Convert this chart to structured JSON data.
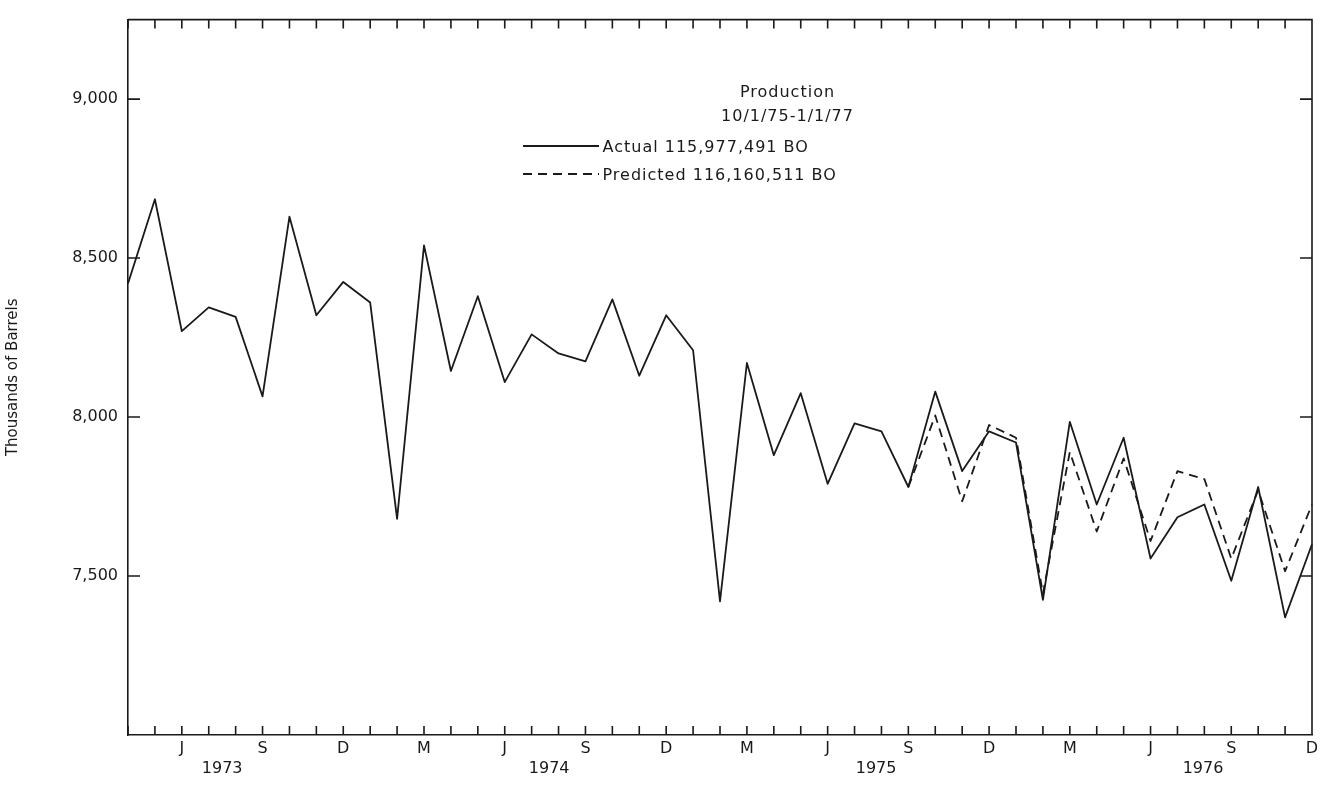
{
  "chart_data": {
    "type": "line",
    "ylabel": "Thousands of Barrels",
    "legend_title": "Production 10/1/75-1/1/77",
    "legend": "top",
    "marker": "none",
    "categories": [
      null,
      null,
      "J",
      null,
      null,
      "S",
      null,
      null,
      "D",
      null,
      null,
      "M",
      null,
      null,
      "J",
      null,
      null,
      "S",
      null,
      null,
      "D",
      null,
      null,
      "M",
      null,
      null,
      "J",
      null,
      null,
      "S",
      null,
      null,
      "D",
      null,
      null,
      "M",
      null,
      null,
      "J",
      null,
      null,
      "S",
      null,
      null,
      "D"
    ],
    "annotations": [
      "1973",
      "1974",
      "1975",
      "1976"
    ],
    "series": [
      {
        "name": "Actual 115,977,491 BO",
        "color": "#1a1a1a",
        "line_style": "solid",
        "values": [
          8420,
          8685,
          8270,
          8345,
          8315,
          8065,
          8630,
          8320,
          8425,
          8360,
          7680,
          8540,
          8145,
          8380,
          8110,
          8260,
          8200,
          8175,
          8370,
          8130,
          8320,
          8210,
          7420,
          8170,
          7880,
          8075,
          7790,
          7980,
          7955,
          7780,
          8080,
          7830,
          7955,
          7920,
          7425,
          7985,
          7725,
          7935,
          7555,
          7685,
          7725,
          7485,
          7780,
          7370,
          7600
        ]
      },
      {
        "name": "Predicted 116,160,511 BO",
        "color": "#1a1a1a",
        "line_style": "dashed",
        "values": [
          null,
          null,
          null,
          null,
          null,
          null,
          null,
          null,
          null,
          null,
          null,
          null,
          null,
          null,
          null,
          null,
          null,
          null,
          null,
          null,
          null,
          null,
          null,
          null,
          null,
          null,
          null,
          null,
          null,
          7780,
          8005,
          7735,
          7975,
          7935,
          7445,
          7890,
          7640,
          7870,
          7610,
          7830,
          7805,
          7555,
          7770,
          7515,
          7725
        ]
      }
    ],
    "ylim": [
      7000,
      9250
    ],
    "yticks": [
      {
        "value": 7500,
        "label": "7,500"
      },
      {
        "value": 8000,
        "label": "8,000"
      },
      {
        "value": 8500,
        "label": "8,500"
      },
      {
        "value": 9000,
        "label": "9,000"
      }
    ]
  }
}
